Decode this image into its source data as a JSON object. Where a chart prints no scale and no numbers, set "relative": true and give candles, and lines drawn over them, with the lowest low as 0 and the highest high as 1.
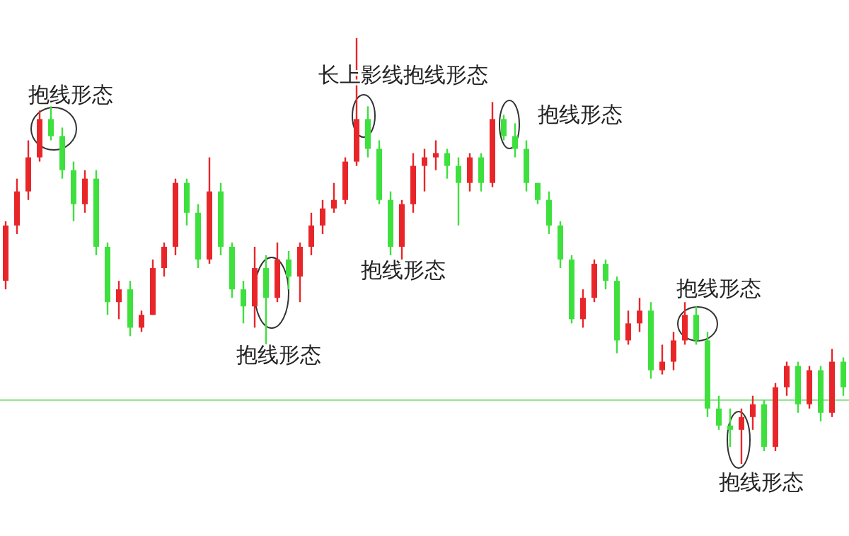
{
  "chart_data": {
    "type": "candlestick",
    "relative": true,
    "categories": [
      null,
      null,
      null,
      null,
      null,
      null,
      null,
      null,
      null,
      null,
      null,
      null,
      null,
      null,
      null,
      null,
      null,
      null,
      null,
      null,
      null,
      null,
      null,
      null,
      null,
      null,
      null,
      null,
      null,
      null,
      null,
      null,
      null,
      null,
      null,
      null,
      null,
      null,
      null,
      null,
      null,
      null,
      null,
      null,
      null,
      null,
      null,
      null,
      null,
      null,
      null,
      null,
      null,
      null,
      null,
      null,
      null,
      null,
      null,
      null,
      null,
      null,
      null,
      null,
      null,
      null,
      null,
      null,
      null,
      null,
      null,
      null,
      null,
      null,
      null
    ],
    "ohlc": [
      [
        0.43,
        0.57,
        0.41,
        0.56
      ],
      [
        0.56,
        0.67,
        0.54,
        0.64
      ],
      [
        0.64,
        0.76,
        0.62,
        0.72
      ],
      [
        0.72,
        0.83,
        0.71,
        0.81
      ],
      [
        0.81,
        0.84,
        0.76,
        0.77
      ],
      [
        0.77,
        0.79,
        0.67,
        0.69
      ],
      [
        0.69,
        0.71,
        0.57,
        0.61
      ],
      [
        0.61,
        0.69,
        0.59,
        0.67
      ],
      [
        0.67,
        0.69,
        0.49,
        0.51
      ],
      [
        0.51,
        0.52,
        0.35,
        0.38
      ],
      [
        0.38,
        0.43,
        0.34,
        0.41
      ],
      [
        0.41,
        0.43,
        0.3,
        0.32
      ],
      [
        0.32,
        0.36,
        0.31,
        0.35
      ],
      [
        0.35,
        0.48,
        0.35,
        0.46
      ],
      [
        0.46,
        0.52,
        0.44,
        0.51
      ],
      [
        0.51,
        0.67,
        0.49,
        0.66
      ],
      [
        0.66,
        0.67,
        0.56,
        0.59
      ],
      [
        0.59,
        0.61,
        0.46,
        0.48
      ],
      [
        0.48,
        0.72,
        0.47,
        0.64
      ],
      [
        0.64,
        0.66,
        0.49,
        0.51
      ],
      [
        0.51,
        0.52,
        0.39,
        0.41
      ],
      [
        0.41,
        0.43,
        0.33,
        0.37
      ],
      [
        0.37,
        0.51,
        0.32,
        0.46
      ],
      [
        0.46,
        0.49,
        0.28,
        0.39
      ],
      [
        0.39,
        0.52,
        0.38,
        0.48
      ],
      [
        0.48,
        0.5,
        0.41,
        0.44
      ],
      [
        0.44,
        0.52,
        0.38,
        0.51
      ],
      [
        0.51,
        0.59,
        0.49,
        0.56
      ],
      [
        0.56,
        0.62,
        0.54,
        0.6
      ],
      [
        0.6,
        0.66,
        0.59,
        0.62
      ],
      [
        0.62,
        0.72,
        0.61,
        0.71
      ],
      [
        0.71,
        1.0,
        0.7,
        0.81
      ],
      [
        0.81,
        0.84,
        0.72,
        0.74
      ],
      [
        0.74,
        0.76,
        0.61,
        0.62
      ],
      [
        0.62,
        0.64,
        0.49,
        0.51
      ],
      [
        0.51,
        0.62,
        0.48,
        0.61
      ],
      [
        0.61,
        0.73,
        0.59,
        0.7
      ],
      [
        0.7,
        0.74,
        0.64,
        0.72
      ],
      [
        0.72,
        0.76,
        0.69,
        0.73
      ],
      [
        0.73,
        0.74,
        0.67,
        0.7
      ],
      [
        0.7,
        0.72,
        0.56,
        0.66
      ],
      [
        0.66,
        0.73,
        0.64,
        0.72
      ],
      [
        0.72,
        0.73,
        0.64,
        0.66
      ],
      [
        0.66,
        0.85,
        0.65,
        0.81
      ],
      [
        0.81,
        0.82,
        0.76,
        0.77
      ],
      [
        0.77,
        0.8,
        0.72,
        0.74
      ],
      [
        0.74,
        0.76,
        0.64,
        0.66
      ],
      [
        0.66,
        0.66,
        0.61,
        0.62
      ],
      [
        0.62,
        0.64,
        0.54,
        0.56
      ],
      [
        0.56,
        0.57,
        0.46,
        0.48
      ],
      [
        0.48,
        0.49,
        0.33,
        0.34
      ],
      [
        0.34,
        0.41,
        0.32,
        0.39
      ],
      [
        0.39,
        0.48,
        0.38,
        0.47
      ],
      [
        0.47,
        0.48,
        0.41,
        0.43
      ],
      [
        0.43,
        0.44,
        0.26,
        0.29
      ],
      [
        0.29,
        0.36,
        0.28,
        0.33
      ],
      [
        0.33,
        0.39,
        0.31,
        0.36
      ],
      [
        0.36,
        0.38,
        0.2,
        0.22
      ],
      [
        0.22,
        0.28,
        0.21,
        0.24
      ],
      [
        0.24,
        0.31,
        0.22,
        0.29
      ],
      [
        0.29,
        0.38,
        0.28,
        0.35
      ],
      [
        0.35,
        0.37,
        0.28,
        0.29
      ],
      [
        0.29,
        0.31,
        0.11,
        0.13
      ],
      [
        0.13,
        0.16,
        0.08,
        0.09
      ],
      [
        0.09,
        0.13,
        0.04,
        0.08
      ],
      [
        0.08,
        0.13,
        0.0,
        0.11
      ],
      [
        0.11,
        0.16,
        0.08,
        0.14
      ],
      [
        0.14,
        0.15,
        0.03,
        0.04
      ],
      [
        0.04,
        0.19,
        0.03,
        0.18
      ],
      [
        0.18,
        0.24,
        0.16,
        0.23
      ],
      [
        0.23,
        0.24,
        0.12,
        0.14
      ],
      [
        0.14,
        0.23,
        0.13,
        0.22
      ],
      [
        0.22,
        0.23,
        0.1,
        0.12
      ],
      [
        0.12,
        0.27,
        0.11,
        0.24
      ],
      [
        0.24,
        0.25,
        0.16,
        0.18
      ]
    ],
    "colors": [
      "#e8262a",
      "#e8262a",
      "#e8262a",
      "#e8262a",
      "#3ee03e",
      "#3ee03e",
      "#3ee03e",
      "#e8262a",
      "#3ee03e",
      "#3ee03e",
      "#e8262a",
      "#3ee03e",
      "#e8262a",
      "#e8262a",
      "#e8262a",
      "#e8262a",
      "#3ee03e",
      "#3ee03e",
      "#e8262a",
      "#3ee03e",
      "#3ee03e",
      "#3ee03e",
      "#e8262a",
      "#3ee03e",
      "#e8262a",
      "#3ee03e",
      "#e8262a",
      "#e8262a",
      "#e8262a",
      "#e8262a",
      "#e8262a",
      "#e8262a",
      "#3ee03e",
      "#3ee03e",
      "#3ee03e",
      "#e8262a",
      "#e8262a",
      "#e8262a",
      "#e8262a",
      "#3ee03e",
      "#3ee03e",
      "#e8262a",
      "#3ee03e",
      "#e8262a",
      "#3ee03e",
      "#3ee03e",
      "#3ee03e",
      "#3ee03e",
      "#3ee03e",
      "#3ee03e",
      "#3ee03e",
      "#e8262a",
      "#e8262a",
      "#3ee03e",
      "#3ee03e",
      "#e8262a",
      "#e8262a",
      "#3ee03e",
      "#e8262a",
      "#e8262a",
      "#e8262a",
      "#3ee03e",
      "#3ee03e",
      "#3ee03e",
      "#3ee03e",
      "#e8262a",
      "#e8262a",
      "#3ee03e",
      "#e8262a",
      "#e8262a",
      "#3ee03e",
      "#e8262a",
      "#3ee03e",
      "#e8262a",
      "#3ee03e"
    ],
    "ref_lines": [
      {
        "axis": "y",
        "value": 0.15,
        "color": "#9be89b"
      }
    ],
    "annotations": [
      "抱线形态",
      "长上影线抱线形态",
      "抱线形态",
      "抱线形态",
      "抱线形态",
      "抱线形态",
      "抱线形态"
    ]
  }
}
